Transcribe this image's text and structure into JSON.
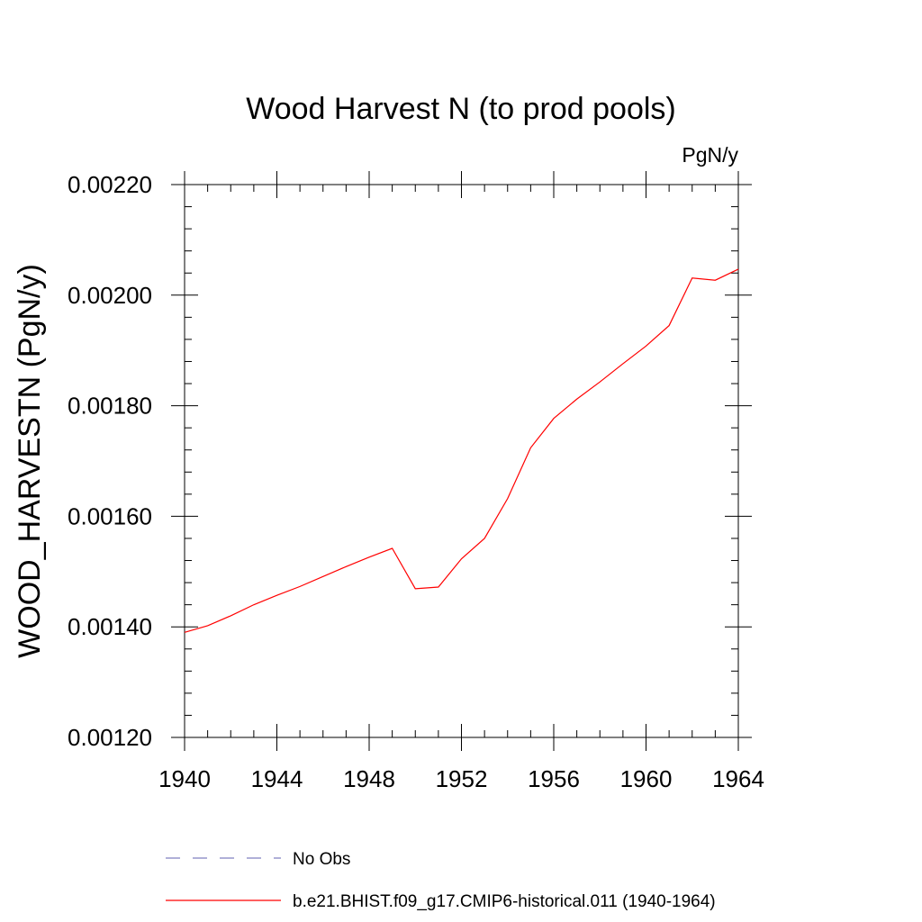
{
  "chart_data": {
    "type": "line",
    "title": "Wood Harvest N (to prod pools)",
    "units": "PgN/y",
    "ylabel": "WOOD_HARVESTN  (PgN/y)",
    "xlabel": "",
    "xlim": [
      1940,
      1964
    ],
    "ylim": [
      0.0012,
      0.0022
    ],
    "x_ticks": [
      1940,
      1944,
      1948,
      1952,
      1956,
      1960,
      1964
    ],
    "x_tick_labels": [
      "1940",
      "1944",
      "1948",
      "1952",
      "1956",
      "1960",
      "1964"
    ],
    "y_ticks": [
      0.0012,
      0.0014,
      0.0016,
      0.0018,
      0.002,
      0.0022
    ],
    "y_tick_labels": [
      "0.00120",
      "0.00140",
      "0.00160",
      "0.00180",
      "0.00200",
      "0.00220"
    ],
    "grid": false,
    "legend_position": "bottom",
    "series": [
      {
        "name": "No Obs",
        "color": "#8080c0",
        "dash": true,
        "x": [],
        "values": []
      },
      {
        "name": "b.e21.BHIST.f09_g17.CMIP6-historical.011 (1940-1964)",
        "color": "#ff0000",
        "dash": false,
        "x": [
          1940,
          1941,
          1942,
          1943,
          1944,
          1945,
          1946,
          1947,
          1948,
          1949,
          1950,
          1951,
          1952,
          1953,
          1954,
          1955,
          1956,
          1957,
          1958,
          1959,
          1960,
          1961,
          1962,
          1963,
          1964
        ],
        "values": [
          0.00139,
          0.001402,
          0.00142,
          0.00144,
          0.001457,
          0.001473,
          0.001491,
          0.001509,
          0.001526,
          0.001542,
          0.001469,
          0.001472,
          0.001523,
          0.00156,
          0.001632,
          0.001724,
          0.001777,
          0.001812,
          0.001843,
          0.001876,
          0.001908,
          0.001945,
          0.002031,
          0.002027,
          0.002047
        ]
      }
    ]
  }
}
